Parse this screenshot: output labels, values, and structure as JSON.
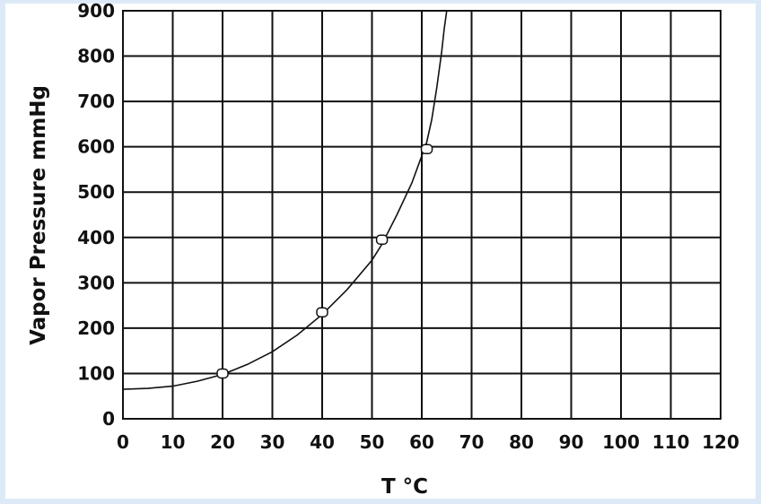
{
  "chart_data": {
    "type": "line",
    "title": "",
    "xlabel": "T °C",
    "ylabel": "Vapor Pressure mmHg",
    "xlim": [
      0,
      120
    ],
    "ylim": [
      0,
      900
    ],
    "x_ticks": [
      0,
      10,
      20,
      30,
      40,
      50,
      60,
      70,
      80,
      90,
      100,
      110,
      120
    ],
    "y_ticks": [
      0,
      100,
      200,
      300,
      400,
      500,
      600,
      700,
      800,
      900
    ],
    "grid": true,
    "series": [
      {
        "x": [
          0,
          5,
          10,
          15,
          20,
          25,
          30,
          35,
          40,
          45,
          50,
          52,
          55,
          58,
          60,
          61,
          62,
          63,
          64,
          64.5,
          65
        ],
        "y": [
          65,
          67,
          72,
          83,
          98,
          120,
          148,
          185,
          230,
          285,
          350,
          385,
          450,
          520,
          580,
          610,
          660,
          730,
          810,
          860,
          900
        ],
        "markers": [
          {
            "x": 20,
            "y": 100
          },
          {
            "x": 40,
            "y": 235
          },
          {
            "x": 52,
            "y": 395
          },
          {
            "x": 61,
            "y": 595
          }
        ]
      }
    ]
  }
}
